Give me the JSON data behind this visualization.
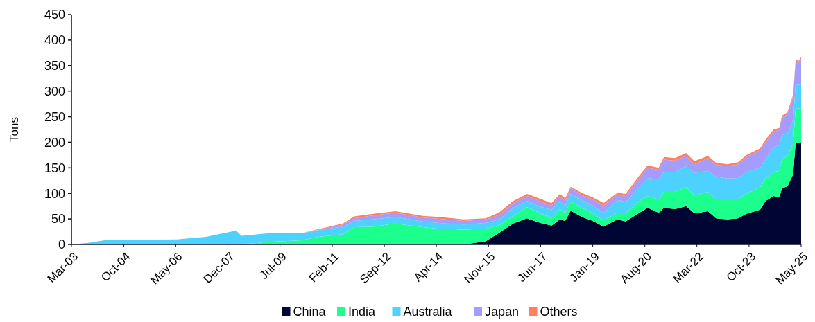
{
  "chart_data": {
    "type": "area",
    "stacked": true,
    "ylabel": "Tons",
    "x": [
      "2003-03",
      "2003-09",
      "2004-03",
      "2004-09",
      "2005-06",
      "2006-06",
      "2007-04",
      "2008-03",
      "2008-05",
      "2008-09",
      "2009-03",
      "2010-03",
      "2010-09",
      "2011-06",
      "2011-10",
      "2012-05",
      "2013-01",
      "2013-11",
      "2014-05",
      "2015-02",
      "2015-10",
      "2016-03",
      "2016-08",
      "2017-01",
      "2017-06",
      "2017-10",
      "2018-01",
      "2018-03",
      "2018-05",
      "2018-09",
      "2019-01",
      "2019-05",
      "2019-10",
      "2020-01",
      "2020-06",
      "2020-09",
      "2021-01",
      "2021-03",
      "2021-07",
      "2021-11",
      "2022-02",
      "2022-07",
      "2022-10",
      "2023-02",
      "2023-06",
      "2023-09",
      "2024-02",
      "2024-04",
      "2024-07",
      "2024-09",
      "2024-10",
      "2024-12",
      "2025-02",
      "2025-03",
      "2025-04",
      "2025-05"
    ],
    "series": [
      {
        "name": "China",
        "color": "#000533",
        "values": [
          0,
          0,
          0,
          0,
          0,
          0,
          0,
          0,
          0,
          0,
          0,
          0,
          0,
          0,
          0,
          0,
          0,
          0,
          0,
          0,
          6,
          23,
          41,
          51,
          42,
          37,
          49,
          46,
          66,
          54,
          46,
          35,
          49,
          45,
          62,
          72,
          62,
          72,
          69,
          75,
          61,
          65,
          51,
          49,
          51,
          60,
          68,
          85,
          95,
          92,
          110,
          114,
          137,
          200,
          199,
          200
        ]
      },
      {
        "name": "India",
        "color": "#1dff8c",
        "values": [
          0,
          0,
          0,
          0,
          0,
          0,
          0,
          0,
          1,
          2,
          5,
          8,
          15,
          20,
          34,
          35,
          41,
          34,
          31,
          29,
          25,
          15,
          15,
          22,
          19,
          14,
          20,
          16,
          18,
          18,
          15,
          12,
          13,
          16,
          23,
          23,
          26,
          31,
          34,
          37,
          35,
          38,
          37,
          39,
          38,
          39,
          44,
          44,
          47,
          52,
          57,
          59,
          61,
          66,
          67,
          68
        ]
      },
      {
        "name": "Australia",
        "color": "#4dd2ff",
        "values": [
          0,
          3,
          8,
          9,
          9,
          10,
          15,
          27,
          16,
          17,
          17,
          14,
          13,
          15,
          12,
          14,
          13,
          11,
          11,
          10,
          11,
          11,
          16,
          12,
          13,
          17,
          16,
          14,
          15,
          15,
          15,
          15,
          25,
          22,
          27,
          35,
          39,
          39,
          39,
          41,
          44,
          41,
          45,
          41,
          41,
          43,
          38,
          38,
          49,
          50,
          47,
          44,
          46,
          47,
          46,
          45
        ]
      },
      {
        "name": "Japan",
        "color": "#a59cff",
        "values": [
          0,
          0,
          0,
          0,
          0,
          0,
          0,
          0,
          0,
          0,
          0,
          0,
          1,
          4,
          5,
          8,
          8,
          8,
          8,
          7,
          7,
          9,
          9,
          10,
          10,
          8,
          10,
          9,
          11,
          10,
          12,
          14,
          11,
          12,
          18,
          20,
          19,
          24,
          22,
          20,
          17,
          25,
          23,
          24,
          27,
          29,
          34,
          33,
          30,
          30,
          34,
          38,
          45,
          46,
          43,
          50
        ]
      },
      {
        "name": "Others",
        "color": "#ff8060",
        "values": [
          0,
          0,
          0,
          0,
          0,
          0,
          0,
          0,
          0,
          0,
          0,
          0,
          1,
          2,
          4,
          3,
          3,
          3,
          4,
          3,
          2,
          5,
          4,
          4,
          5,
          5,
          4,
          5,
          3,
          4,
          4,
          5,
          3,
          4,
          5,
          5,
          4,
          5,
          5,
          6,
          6,
          4,
          4,
          4,
          4,
          4,
          4,
          5,
          4,
          4,
          4,
          4,
          4,
          4,
          4,
          4
        ]
      }
    ],
    "xlim": [
      "2003-03",
      "2025-05"
    ],
    "xticks": [
      {
        "value": "2003-03",
        "label": "Mar-03"
      },
      {
        "value": "2004-10",
        "label": "Oct-04"
      },
      {
        "value": "2006-05",
        "label": "May-06"
      },
      {
        "value": "2007-12",
        "label": "Dec-07"
      },
      {
        "value": "2009-07",
        "label": "Jul-09"
      },
      {
        "value": "2011-02",
        "label": "Feb-11"
      },
      {
        "value": "2012-09",
        "label": "Sep-12"
      },
      {
        "value": "2014-04",
        "label": "Apr-14"
      },
      {
        "value": "2015-11",
        "label": "Nov-15"
      },
      {
        "value": "2017-06",
        "label": "Jun-17"
      },
      {
        "value": "2019-01",
        "label": "Jan-19"
      },
      {
        "value": "2020-08",
        "label": "Aug-20"
      },
      {
        "value": "2022-03",
        "label": "Mar-22"
      },
      {
        "value": "2023-10",
        "label": "Oct-23"
      },
      {
        "value": "2025-05",
        "label": "May-25"
      }
    ],
    "ylim": [
      0,
      450
    ],
    "yticks": [
      0,
      50,
      100,
      150,
      200,
      250,
      300,
      350,
      400,
      450
    ],
    "legend": "bottom",
    "grid": false
  }
}
